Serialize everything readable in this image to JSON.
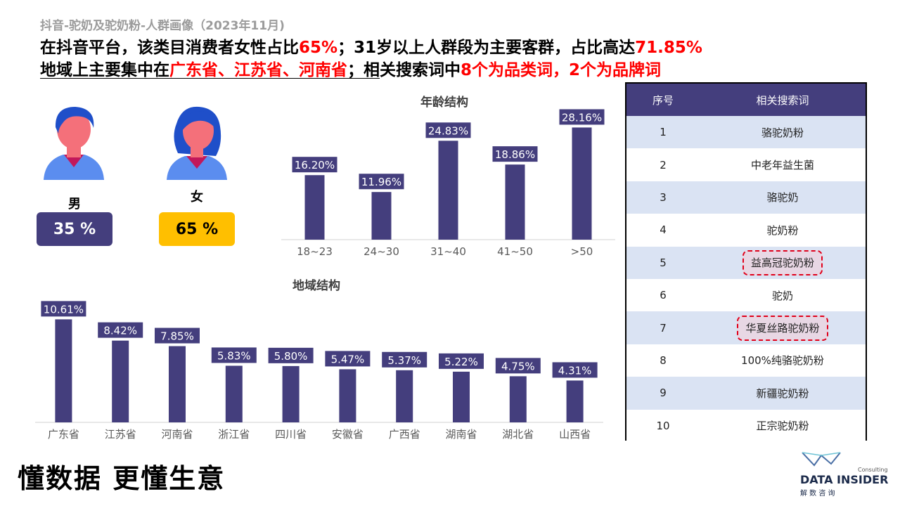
{
  "header": {
    "subtitle": "抖音-驼奶及驼奶粉-人群画像（2023年11月)",
    "line1": [
      {
        "text": "在抖音平台，该类目消费者女性占比",
        "red": false
      },
      {
        "text": "65%",
        "red": true
      },
      {
        "text": "；31岁以上人群段为主要客群，占比高达",
        "red": false
      },
      {
        "text": "71.85%",
        "red": true
      }
    ],
    "line2": [
      {
        "text": "地域上主要集中在",
        "red": false
      },
      {
        "text": "广东省、江苏省、河南省",
        "red": true
      },
      {
        "text": "；相关搜索词中",
        "red": false
      },
      {
        "text": "8个为品类词，2个为品牌词",
        "red": true
      }
    ]
  },
  "gender": {
    "male": {
      "label": "男",
      "percent": "35 %",
      "icon": "male-user-icon"
    },
    "female": {
      "label": "女",
      "percent": "65 %",
      "icon": "female-user-icon"
    }
  },
  "colors": {
    "bar": "#443e7d",
    "female_box": "#ffbf00",
    "highlight_text": "#ff0000",
    "table_header": "#443e7d",
    "table_stripe": "#dae3f3"
  },
  "chart_data": [
    {
      "type": "bar",
      "title": "年龄结构",
      "categories": [
        "18~23",
        "24~30",
        "31~40",
        "41~50",
        ">50"
      ],
      "values": [
        16.2,
        11.96,
        24.83,
        18.86,
        28.16
      ],
      "value_labels": [
        "16.20%",
        "11.96%",
        "24.83%",
        "18.86%",
        "28.16%"
      ],
      "ylim": [
        0,
        30
      ]
    },
    {
      "type": "bar",
      "title": "地域结构",
      "categories": [
        "广东省",
        "江苏省",
        "河南省",
        "浙江省",
        "四川省",
        "安徽省",
        "广西省",
        "湖南省",
        "湖北省",
        "山西省"
      ],
      "values": [
        10.61,
        8.42,
        7.85,
        5.83,
        5.8,
        5.47,
        5.37,
        5.22,
        4.75,
        4.31
      ],
      "value_labels": [
        "10.61%",
        "8.42%",
        "7.85%",
        "5.83%",
        "5.80%",
        "5.47%",
        "5.37%",
        "5.22%",
        "4.75%",
        "4.31%"
      ],
      "ylim": [
        0,
        11
      ]
    }
  ],
  "table": {
    "headers": [
      "序号",
      "相关搜索词"
    ],
    "rows": [
      {
        "no": "1",
        "keyword": "骆驼奶粉",
        "highlight": false
      },
      {
        "no": "2",
        "keyword": "中老年益生菌",
        "highlight": false
      },
      {
        "no": "3",
        "keyword": "骆驼奶",
        "highlight": false
      },
      {
        "no": "4",
        "keyword": "驼奶粉",
        "highlight": false
      },
      {
        "no": "5",
        "keyword": "益高冠驼奶粉",
        "highlight": true
      },
      {
        "no": "6",
        "keyword": "驼奶",
        "highlight": false
      },
      {
        "no": "7",
        "keyword": "华夏丝路驼奶粉",
        "highlight": true
      },
      {
        "no": "8",
        "keyword": "100%纯骆驼奶粉",
        "highlight": false
      },
      {
        "no": "9",
        "keyword": "新疆驼奶粉",
        "highlight": false
      },
      {
        "no": "10",
        "keyword": "正宗驼奶粉",
        "highlight": false
      }
    ]
  },
  "footer": {
    "slogan": "懂数据 更懂生意",
    "brand_top": "Consulting",
    "brand_name": "DATA INSIDER",
    "brand_cn": "解 数 咨 询"
  }
}
